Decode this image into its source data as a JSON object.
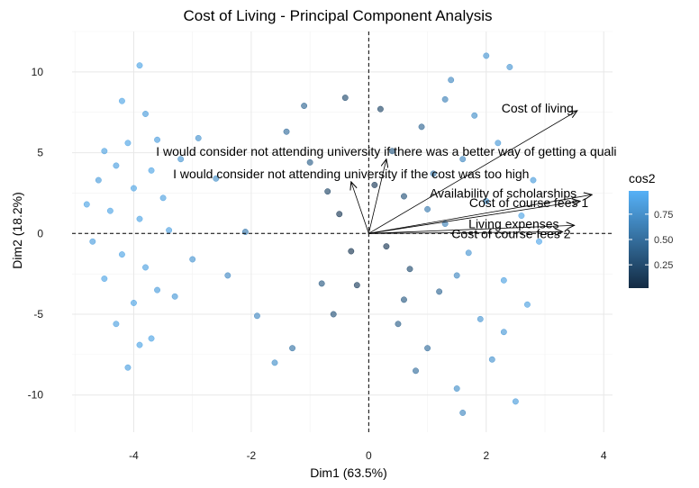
{
  "chart_data": {
    "type": "scatter",
    "title": "Cost of Living - Principal Component Analysis",
    "xlabel": "Dim1 (63.5%)",
    "ylabel": "Dim2 (18.2%)",
    "xlim": [
      -5.05,
      4.15
    ],
    "ylim": [
      -12.3,
      12.5
    ],
    "x_ticks": [
      -4,
      -2,
      0,
      2,
      4
    ],
    "y_ticks": [
      -10,
      -5,
      0,
      5,
      10
    ],
    "x_tick_labels": [
      "-4",
      "-2",
      "0",
      "2",
      "4"
    ],
    "y_tick_labels": [
      "-10",
      "-5",
      "0",
      "5",
      "10"
    ],
    "grid": true,
    "legend": {
      "title": "cos2",
      "position": "right",
      "ticks": [
        0.25,
        0.5,
        0.75
      ],
      "tick_labels": [
        "0.25",
        "0.50",
        "0.75"
      ],
      "color_low": "#132b43",
      "color_high": "#56b1f7"
    },
    "variables": [
      {
        "name": "Cost of living",
        "x": 3.55,
        "y": 7.6
      },
      {
        "name": "Cost of course fees 1",
        "x": 3.8,
        "y": 2.4
      },
      {
        "name": "Availability of scholarships",
        "x": 3.6,
        "y": 2.0
      },
      {
        "name": "Cost of course fees 2",
        "x": 3.5,
        "y": 0.5
      },
      {
        "name": "Living expenses",
        "x": 3.3,
        "y": 0.1
      },
      {
        "name": "I would consider not attending university if there was a better way of getting a quali",
        "x": 0.3,
        "y": 4.6
      },
      {
        "name": "I would consider not attending university if the cost was too high",
        "x": -0.3,
        "y": 3.2
      }
    ],
    "individuals": [
      {
        "x": -4.2,
        "y": 8.2,
        "cos2": 0.9
      },
      {
        "x": -3.9,
        "y": 10.4,
        "cos2": 0.9
      },
      {
        "x": -3.8,
        "y": 7.4,
        "cos2": 0.85
      },
      {
        "x": -4.5,
        "y": 5.1,
        "cos2": 0.88
      },
      {
        "x": -4.1,
        "y": 5.6,
        "cos2": 0.9
      },
      {
        "x": -3.6,
        "y": 5.8,
        "cos2": 0.86
      },
      {
        "x": -4.3,
        "y": 4.2,
        "cos2": 0.87
      },
      {
        "x": -3.7,
        "y": 3.9,
        "cos2": 0.9
      },
      {
        "x": -4.6,
        "y": 3.3,
        "cos2": 0.85
      },
      {
        "x": -4.0,
        "y": 2.8,
        "cos2": 0.9
      },
      {
        "x": -3.5,
        "y": 2.2,
        "cos2": 0.88
      },
      {
        "x": -4.4,
        "y": 1.4,
        "cos2": 0.9
      },
      {
        "x": -3.9,
        "y": 0.9,
        "cos2": 0.9
      },
      {
        "x": -3.4,
        "y": 0.2,
        "cos2": 0.87
      },
      {
        "x": -4.7,
        "y": -0.5,
        "cos2": 0.86
      },
      {
        "x": -4.2,
        "y": -1.3,
        "cos2": 0.9
      },
      {
        "x": -3.8,
        "y": -2.1,
        "cos2": 0.88
      },
      {
        "x": -4.5,
        "y": -2.8,
        "cos2": 0.9
      },
      {
        "x": -3.6,
        "y": -3.5,
        "cos2": 0.85
      },
      {
        "x": -4.0,
        "y": -4.3,
        "cos2": 0.9
      },
      {
        "x": -4.3,
        "y": -5.6,
        "cos2": 0.88
      },
      {
        "x": -3.9,
        "y": -6.9,
        "cos2": 0.9
      },
      {
        "x": -4.1,
        "y": -8.3,
        "cos2": 0.87
      },
      {
        "x": -3.7,
        "y": -6.5,
        "cos2": 0.9
      },
      {
        "x": -3.3,
        "y": -3.9,
        "cos2": 0.82
      },
      {
        "x": -4.8,
        "y": 1.8,
        "cos2": 0.9
      },
      {
        "x": -3.2,
        "y": 4.6,
        "cos2": 0.8
      },
      {
        "x": -2.9,
        "y": 5.9,
        "cos2": 0.78
      },
      {
        "x": -2.6,
        "y": 3.4,
        "cos2": 0.75
      },
      {
        "x": -3.0,
        "y": -1.6,
        "cos2": 0.8
      },
      {
        "x": -2.4,
        "y": -2.6,
        "cos2": 0.72
      },
      {
        "x": -2.1,
        "y": 0.1,
        "cos2": 0.6
      },
      {
        "x": -1.9,
        "y": -5.1,
        "cos2": 0.7
      },
      {
        "x": -1.6,
        "y": -8.0,
        "cos2": 0.75
      },
      {
        "x": -1.4,
        "y": 6.3,
        "cos2": 0.5
      },
      {
        "x": -1.1,
        "y": 7.9,
        "cos2": 0.45
      },
      {
        "x": -1.0,
        "y": 4.4,
        "cos2": 0.4
      },
      {
        "x": -0.8,
        "y": -3.1,
        "cos2": 0.35
      },
      {
        "x": -1.3,
        "y": -7.1,
        "cos2": 0.55
      },
      {
        "x": -0.6,
        "y": -5.0,
        "cos2": 0.3
      },
      {
        "x": -0.4,
        "y": 8.4,
        "cos2": 0.25
      },
      {
        "x": -0.5,
        "y": 1.2,
        "cos2": 0.1
      },
      {
        "x": -0.3,
        "y": -1.1,
        "cos2": 0.08
      },
      {
        "x": -0.7,
        "y": 2.6,
        "cos2": 0.2
      },
      {
        "x": -0.2,
        "y": -3.2,
        "cos2": 0.15
      },
      {
        "x": 0.2,
        "y": 7.7,
        "cos2": 0.2
      },
      {
        "x": 0.3,
        "y": -0.8,
        "cos2": 0.1
      },
      {
        "x": 0.4,
        "y": 5.1,
        "cos2": 0.35
      },
      {
        "x": 0.5,
        "y": -5.6,
        "cos2": 0.4
      },
      {
        "x": 0.6,
        "y": 2.3,
        "cos2": 0.3
      },
      {
        "x": 0.7,
        "y": -2.2,
        "cos2": 0.25
      },
      {
        "x": 0.9,
        "y": 6.6,
        "cos2": 0.45
      },
      {
        "x": 1.0,
        "y": -7.1,
        "cos2": 0.5
      },
      {
        "x": 1.1,
        "y": 3.7,
        "cos2": 0.55
      },
      {
        "x": 1.2,
        "y": -3.6,
        "cos2": 0.45
      },
      {
        "x": 1.3,
        "y": 0.6,
        "cos2": 0.65
      },
      {
        "x": 1.4,
        "y": 9.5,
        "cos2": 0.7
      },
      {
        "x": 1.5,
        "y": -9.6,
        "cos2": 0.75
      },
      {
        "x": 1.6,
        "y": 4.6,
        "cos2": 0.7
      },
      {
        "x": 1.7,
        "y": -1.2,
        "cos2": 0.8
      },
      {
        "x": 1.8,
        "y": 7.3,
        "cos2": 0.75
      },
      {
        "x": 1.9,
        "y": -5.3,
        "cos2": 0.8
      },
      {
        "x": 2.0,
        "y": 2.0,
        "cos2": 0.85
      },
      {
        "x": 2.1,
        "y": -7.8,
        "cos2": 0.78
      },
      {
        "x": 2.2,
        "y": 5.6,
        "cos2": 0.82
      },
      {
        "x": 2.3,
        "y": -2.9,
        "cos2": 0.88
      },
      {
        "x": 2.4,
        "y": 10.3,
        "cos2": 0.8
      },
      {
        "x": 2.5,
        "y": -10.4,
        "cos2": 0.85
      },
      {
        "x": 2.6,
        "y": 1.1,
        "cos2": 0.9
      },
      {
        "x": 2.7,
        "y": -4.4,
        "cos2": 0.88
      },
      {
        "x": 2.8,
        "y": 3.3,
        "cos2": 0.85
      },
      {
        "x": 2.9,
        "y": -0.5,
        "cos2": 0.92
      },
      {
        "x": 2.0,
        "y": 11.0,
        "cos2": 0.8
      },
      {
        "x": 2.3,
        "y": -6.1,
        "cos2": 0.82
      },
      {
        "x": 1.3,
        "y": 8.3,
        "cos2": 0.65
      },
      {
        "x": 0.8,
        "y": -8.5,
        "cos2": 0.5
      },
      {
        "x": 1.6,
        "y": -11.1,
        "cos2": 0.7
      },
      {
        "x": 0.1,
        "y": 3.0,
        "cos2": 0.12
      },
      {
        "x": 1.0,
        "y": 1.5,
        "cos2": 0.6
      },
      {
        "x": 1.5,
        "y": -2.6,
        "cos2": 0.7
      },
      {
        "x": 0.6,
        "y": -4.1,
        "cos2": 0.35
      }
    ]
  }
}
